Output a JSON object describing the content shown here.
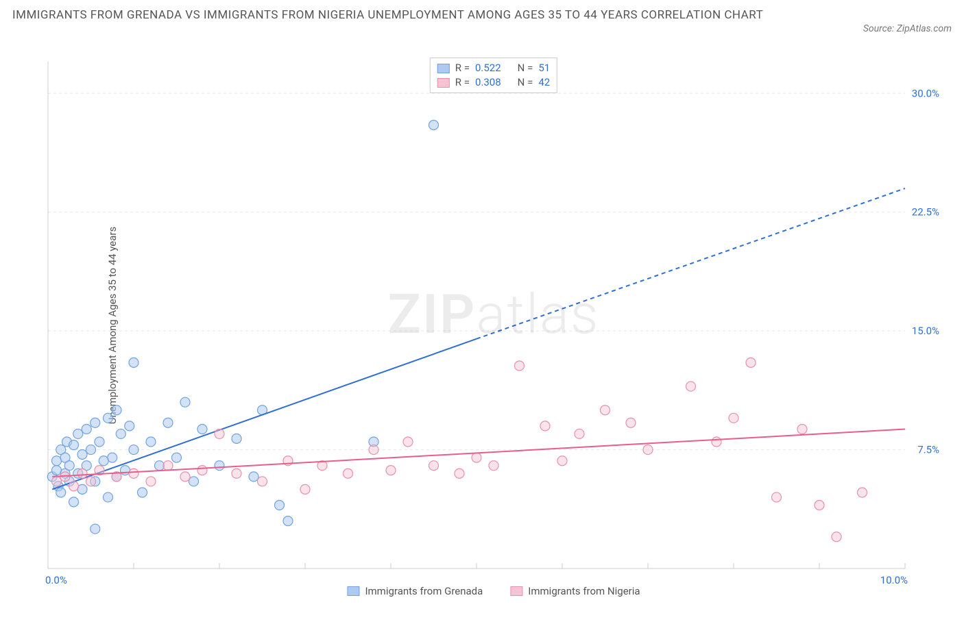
{
  "title": "IMMIGRANTS FROM GRENADA VS IMMIGRANTS FROM NIGERIA UNEMPLOYMENT AMONG AGES 35 TO 44 YEARS CORRELATION CHART",
  "source": "Source: ZipAtlas.com",
  "y_axis_label": "Unemployment Among Ages 35 to 44 years",
  "watermark_bold": "ZIP",
  "watermark_light": "atlas",
  "chart": {
    "type": "scatter",
    "xlim": [
      0,
      10
    ],
    "ylim": [
      0,
      32
    ],
    "x_ticks": [
      0,
      10
    ],
    "x_tick_labels": [
      "0.0%",
      "10.0%"
    ],
    "y_ticks": [
      7.5,
      15.0,
      22.5,
      30.0
    ],
    "y_tick_labels": [
      "7.5%",
      "15.0%",
      "22.5%",
      "30.0%"
    ],
    "grid_color": "#e8e8e8",
    "grid_dash": "4,4",
    "axis_color": "#cccccc",
    "tick_label_color": "#2e6fd6",
    "background": "#ffffff",
    "marker_radius": 7,
    "marker_stroke_width": 1.2,
    "trend_line_width": 2,
    "series": [
      {
        "name": "Immigrants from Grenada",
        "fill": "#aecbef",
        "stroke": "#6fa3e0",
        "fill_opacity": 0.55,
        "R": "0.522",
        "N": "51",
        "trend": {
          "color": "#2e6fd6",
          "solid_from": [
            0.05,
            5.0
          ],
          "solid_to": [
            5.0,
            14.5
          ],
          "dash_to": [
            10.0,
            24
          ]
        },
        "points": [
          [
            0.05,
            5.8
          ],
          [
            0.1,
            6.2
          ],
          [
            0.1,
            6.8
          ],
          [
            0.12,
            5.2
          ],
          [
            0.15,
            7.5
          ],
          [
            0.15,
            4.8
          ],
          [
            0.2,
            6.0
          ],
          [
            0.2,
            7.0
          ],
          [
            0.22,
            8.0
          ],
          [
            0.25,
            5.5
          ],
          [
            0.25,
            6.5
          ],
          [
            0.3,
            7.8
          ],
          [
            0.3,
            4.2
          ],
          [
            0.35,
            8.5
          ],
          [
            0.35,
            6.0
          ],
          [
            0.4,
            7.2
          ],
          [
            0.4,
            5.0
          ],
          [
            0.45,
            8.8
          ],
          [
            0.45,
            6.5
          ],
          [
            0.5,
            7.5
          ],
          [
            0.55,
            9.2
          ],
          [
            0.55,
            5.5
          ],
          [
            0.6,
            8.0
          ],
          [
            0.65,
            6.8
          ],
          [
            0.7,
            9.5
          ],
          [
            0.7,
            4.5
          ],
          [
            0.75,
            7.0
          ],
          [
            0.8,
            10.0
          ],
          [
            0.8,
            5.8
          ],
          [
            0.85,
            8.5
          ],
          [
            0.9,
            6.2
          ],
          [
            0.95,
            9.0
          ],
          [
            1.0,
            13.0
          ],
          [
            1.0,
            7.5
          ],
          [
            1.1,
            4.8
          ],
          [
            1.2,
            8.0
          ],
          [
            1.3,
            6.5
          ],
          [
            1.4,
            9.2
          ],
          [
            1.5,
            7.0
          ],
          [
            1.6,
            10.5
          ],
          [
            1.7,
            5.5
          ],
          [
            1.8,
            8.8
          ],
          [
            0.55,
            2.5
          ],
          [
            2.0,
            6.5
          ],
          [
            2.2,
            8.2
          ],
          [
            2.4,
            5.8
          ],
          [
            2.5,
            10.0
          ],
          [
            2.7,
            4.0
          ],
          [
            2.8,
            3.0
          ],
          [
            3.8,
            8.0
          ],
          [
            4.5,
            28.0
          ]
        ]
      },
      {
        "name": "Immigrants from Nigeria",
        "fill": "#f5c4d1",
        "stroke": "#e78fb0",
        "fill_opacity": 0.45,
        "R": "0.308",
        "N": "42",
        "trend": {
          "color": "#e85d8a",
          "solid_from": [
            0.05,
            5.8
          ],
          "solid_to": [
            10.0,
            8.8
          ],
          "dash_to": null
        },
        "points": [
          [
            0.1,
            5.5
          ],
          [
            0.2,
            5.8
          ],
          [
            0.3,
            5.2
          ],
          [
            0.4,
            6.0
          ],
          [
            0.5,
            5.5
          ],
          [
            0.6,
            6.2
          ],
          [
            0.8,
            5.8
          ],
          [
            1.0,
            6.0
          ],
          [
            1.2,
            5.5
          ],
          [
            1.4,
            6.5
          ],
          [
            1.6,
            5.8
          ],
          [
            1.8,
            6.2
          ],
          [
            2.0,
            8.5
          ],
          [
            2.2,
            6.0
          ],
          [
            2.5,
            5.5
          ],
          [
            2.8,
            6.8
          ],
          [
            3.0,
            5.0
          ],
          [
            3.2,
            6.5
          ],
          [
            3.5,
            6.0
          ],
          [
            3.8,
            7.5
          ],
          [
            4.0,
            6.2
          ],
          [
            4.2,
            8.0
          ],
          [
            4.5,
            6.5
          ],
          [
            4.8,
            6.0
          ],
          [
            5.0,
            7.0
          ],
          [
            5.2,
            6.5
          ],
          [
            5.5,
            12.8
          ],
          [
            5.8,
            9.0
          ],
          [
            6.0,
            6.8
          ],
          [
            6.2,
            8.5
          ],
          [
            6.5,
            10.0
          ],
          [
            6.8,
            9.2
          ],
          [
            7.0,
            7.5
          ],
          [
            7.5,
            11.5
          ],
          [
            7.8,
            8.0
          ],
          [
            8.0,
            9.5
          ],
          [
            8.2,
            13.0
          ],
          [
            8.5,
            4.5
          ],
          [
            8.8,
            8.8
          ],
          [
            9.0,
            4.0
          ],
          [
            9.2,
            2.0
          ],
          [
            9.5,
            4.8
          ]
        ]
      }
    ]
  },
  "legend_labels": {
    "R_label": "R =",
    "N_label": "N ="
  }
}
